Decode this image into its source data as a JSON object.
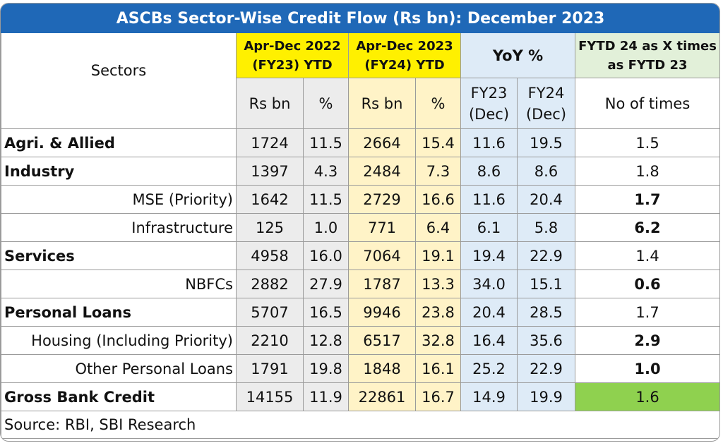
{
  "title": "ASCBs Sector-Wise Credit Flow (Rs bn): December 2023",
  "headers": {
    "sectors": "Sectors",
    "fy23_l1": "Apr-Dec 2022",
    "fy23_l2": "(FY23) YTD",
    "fy24_l1": "Apr-Dec 2023",
    "fy24_l2": "(FY24) YTD",
    "yoy": "YoY %",
    "fytd_l1": "FYTD 24 as X times",
    "fytd_l2": "as FYTD 23",
    "rsbn": "Rs bn",
    "pct": "%",
    "fy23dec_l1": "FY23",
    "fy23dec_l2": "(Dec)",
    "fy24dec_l1": "FY24",
    "fy24dec_l2": "(Dec)",
    "times": "No of times"
  },
  "rows": [
    {
      "sector": "Agri. & Allied",
      "fy23_rs": "1724",
      "fy23_pct": "11.5",
      "fy24_rs": "2664",
      "fy24_pct": "15.4",
      "yoy23": "11.6",
      "yoy24": "19.5",
      "times": "1.5"
    },
    {
      "sector": "Industry",
      "fy23_rs": "1397",
      "fy23_pct": "4.3",
      "fy24_rs": "2484",
      "fy24_pct": "7.3",
      "yoy23": "8.6",
      "yoy24": "8.6",
      "times": "1.8"
    },
    {
      "sector": "MSE (Priority)",
      "fy23_rs": "1642",
      "fy23_pct": "11.5",
      "fy24_rs": "2729",
      "fy24_pct": "16.6",
      "yoy23": "11.6",
      "yoy24": "20.4",
      "times": "1.7"
    },
    {
      "sector": "Infrastructure",
      "fy23_rs": "125",
      "fy23_pct": "1.0",
      "fy24_rs": "771",
      "fy24_pct": "6.4",
      "yoy23": "6.1",
      "yoy24": "5.8",
      "times": "6.2"
    },
    {
      "sector": "Services",
      "fy23_rs": "4958",
      "fy23_pct": "16.0",
      "fy24_rs": "7064",
      "fy24_pct": "19.1",
      "yoy23": "19.4",
      "yoy24": "22.9",
      "times": "1.4"
    },
    {
      "sector": "NBFCs",
      "fy23_rs": "2882",
      "fy23_pct": "27.9",
      "fy24_rs": "1787",
      "fy24_pct": "13.3",
      "yoy23": "34.0",
      "yoy24": "15.1",
      "times": "0.6"
    },
    {
      "sector": "Personal Loans",
      "fy23_rs": "5707",
      "fy23_pct": "16.5",
      "fy24_rs": "9946",
      "fy24_pct": "23.8",
      "yoy23": "20.4",
      "yoy24": "28.5",
      "times": "1.7"
    },
    {
      "sector": "Housing (Including Priority)",
      "fy23_rs": "2210",
      "fy23_pct": "12.8",
      "fy24_rs": "6517",
      "fy24_pct": "32.8",
      "yoy23": "16.4",
      "yoy24": "35.6",
      "times": "2.9"
    },
    {
      "sector": "Other Personal Loans",
      "fy23_rs": "1791",
      "fy23_pct": "19.8",
      "fy24_rs": "1848",
      "fy24_pct": "16.1",
      "yoy23": "25.2",
      "yoy24": "22.9",
      "times": "1.0"
    },
    {
      "sector": "Gross Bank Credit",
      "fy23_rs": "14155",
      "fy23_pct": "11.9",
      "fy24_rs": "22861",
      "fy24_pct": "16.7",
      "yoy23": "14.9",
      "yoy24": "19.9",
      "times": "1.6"
    }
  ],
  "source": "Source: RBI, SBI Research",
  "colors": {
    "title_bg": "#1f68b7",
    "header_yellow": "#fff000",
    "fy24_col": "#fff3c7",
    "fy23_col": "#ececec",
    "yoy_col": "#deebf7",
    "times_header": "#e2f0d9",
    "highlight_green": "#8fd14f"
  }
}
